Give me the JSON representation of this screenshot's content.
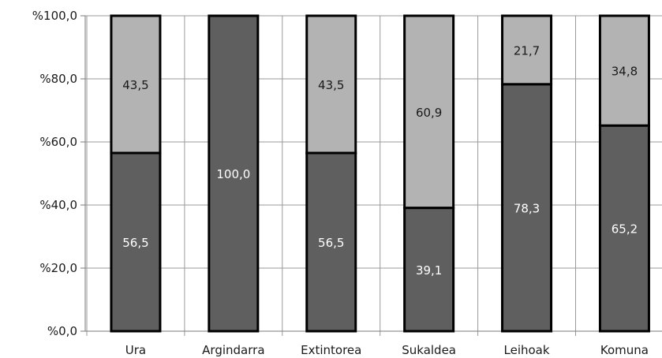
{
  "chart_data": {
    "type": "bar",
    "stacked": true,
    "categories": [
      "Ura",
      "Argindarra",
      "Extintorea",
      "Sukaldea",
      "Leihoak",
      "Komuna"
    ],
    "series": [
      {
        "values": [
          56.5,
          100.0,
          56.5,
          39.1,
          78.3,
          65.2
        ],
        "labels": [
          "56,5",
          "100,0",
          "56,5",
          "39,1",
          "78,3",
          "65,2"
        ],
        "color": "#5f5f5f"
      },
      {
        "values": [
          43.5,
          0.0,
          43.5,
          60.9,
          21.7,
          34.8
        ],
        "labels": [
          "43,5",
          "",
          "43,5",
          "60,9",
          "21,7",
          "34,8"
        ],
        "color": "#b3b3b3"
      }
    ],
    "yticks": [
      0,
      20,
      40,
      60,
      80,
      100
    ],
    "ytick_labels": [
      "%0,0",
      "%20,0",
      "%40,0",
      "%60,0",
      "%80,0",
      "%100,0"
    ],
    "ylim": [
      0,
      100
    ],
    "grid": true,
    "legend": "none"
  }
}
